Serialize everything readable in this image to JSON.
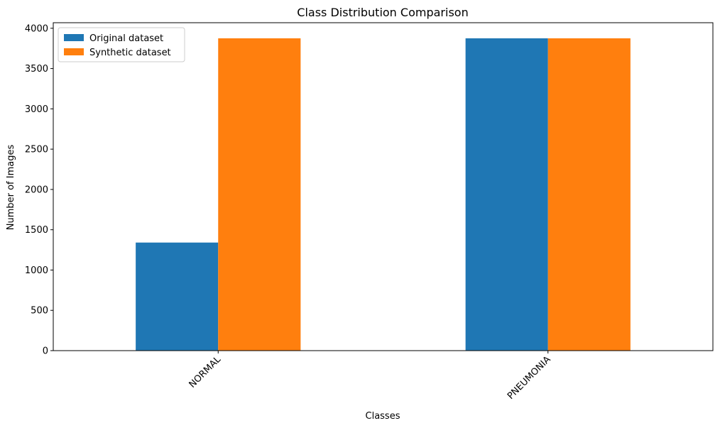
{
  "chart_data": {
    "type": "bar",
    "title": "Class Distribution Comparison",
    "xlabel": "Classes",
    "ylabel": "Number of Images",
    "categories": [
      "NORMAL",
      "PNEUMONIA"
    ],
    "series": [
      {
        "name": "Original dataset",
        "values": [
          1341,
          3875
        ],
        "color": "#1f77b4"
      },
      {
        "name": "Synthetic dataset",
        "values": [
          3875,
          3875
        ],
        "color": "#ff7f0e"
      }
    ],
    "ylim": [
      0,
      4068.75
    ],
    "yticks": [
      0,
      500,
      1000,
      1500,
      2000,
      2500,
      3000,
      3500,
      4000
    ],
    "grid": false,
    "legend_position": "top-left",
    "x_tick_rotation_deg": 45
  }
}
